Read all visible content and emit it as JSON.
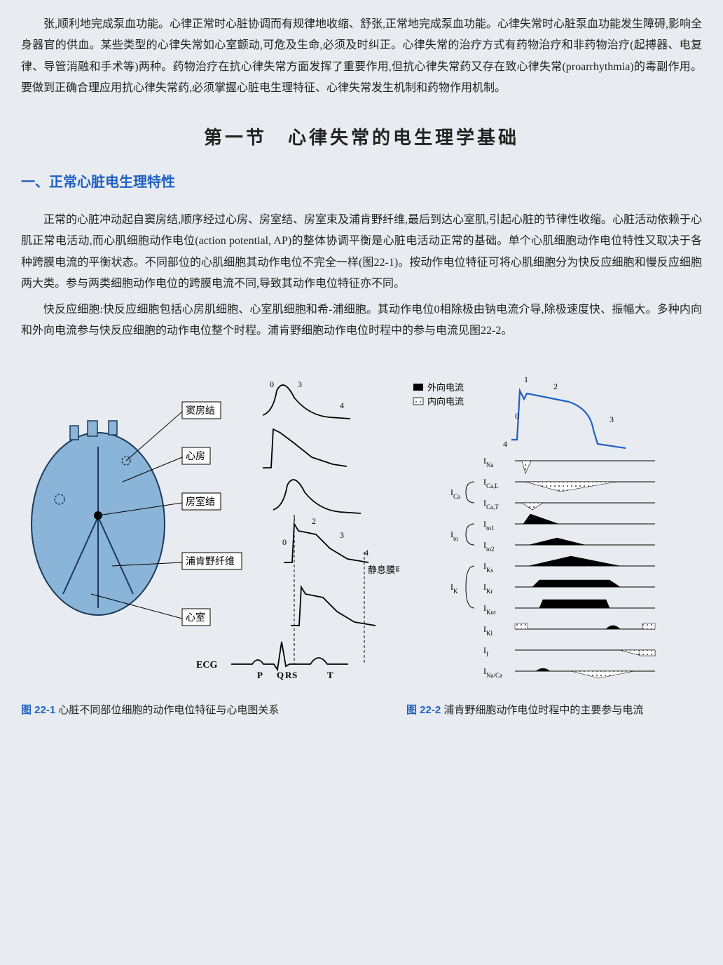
{
  "intro": "张,顺利地完成泵血功能。心律正常时心脏协调而有规律地收缩、舒张,正常地完成泵血功能。心律失常时心脏泵血功能发生障碍,影响全身器官的供血。某些类型的心律失常如心室颤动,可危及生命,必须及时纠正。心律失常的治疗方式有药物治疗和非药物治疗(起搏器、电复律、导管消融和手术等)两种。药物治疗在抗心律失常方面发挥了重要作用,但抗心律失常药又存在致心律失常(proarrhythmia)的毒副作用。要做到正确合理应用抗心律失常药,必须掌握心脏电生理特征、心律失常发生机制和药物作用机制。",
  "sectionTitle": "第一节　心律失常的电生理学基础",
  "subHeading": "一、正常心脏电生理特性",
  "para1": "正常的心脏冲动起自窦房结,顺序经过心房、房室结、房室束及浦肯野纤维,最后到达心室肌,引起心脏的节律性收缩。心脏活动依赖于心肌正常电活动,而心肌细胞动作电位(action potential, AP)的整体协调平衡是心脏电活动正常的基础。单个心肌细胞动作电位特性又取决于各种跨膜电流的平衡状态。不同部位的心肌细胞其动作电位不完全一样(图22-1)。按动作电位特征可将心肌细胞分为快反应细胞和慢反应细胞两大类。参与两类细胞动作电位的跨膜电流不同,导致其动作电位特征亦不同。",
  "para2": "快反应细胞:快反应细胞包括心房肌细胞、心室肌细胞和希-浦细胞。其动作电位0相除极由钠电流介导,除极速度快、振幅大。多种内向和外向电流参与快反应细胞的动作电位整个时程。浦肯野细胞动作电位时程中的参与电流见图22-2。",
  "fig1": {
    "num": "图 22-1",
    "caption": "心脏不同部位细胞的动作电位特征与心电图关系",
    "heartLabels": [
      "窦房结",
      "心房",
      "房室结",
      "浦肯野纤维",
      "心室"
    ],
    "phaseLabels": [
      "0",
      "1",
      "2",
      "3",
      "4"
    ],
    "restingLabel": "静息膜电位",
    "ecgLabel": "ECG",
    "ecgWaves": [
      "P",
      "Q",
      "R",
      "S",
      "T"
    ],
    "heartColor": "#8ab4d8",
    "heartStroke": "#1a3a5a",
    "lineColor": "#000000",
    "labelBoxBg": "#ffffff",
    "labelBoxStroke": "#000000"
  },
  "fig2": {
    "num": "图 22-2",
    "caption": "浦肯野细胞动作电位时程中的主要参与电流",
    "legend": {
      "outward": "外向电流",
      "inward": "内向电流"
    },
    "phaseLabels": [
      "0",
      "1",
      "2",
      "3",
      "4"
    ],
    "currents": [
      {
        "label": "I_Na",
        "group": null
      },
      {
        "label": "I_Ca,L",
        "group": "I_Ca"
      },
      {
        "label": "I_Ca,T",
        "group": "I_Ca"
      },
      {
        "label": "I_to1",
        "group": "I_to"
      },
      {
        "label": "I_to2",
        "group": "I_to"
      },
      {
        "label": "I_Ks",
        "group": "I_K"
      },
      {
        "label": "I_Kr",
        "group": "I_K"
      },
      {
        "label": "I_Kur",
        "group": "I_K"
      },
      {
        "label": "I_Kl",
        "group": null
      },
      {
        "label": "I_f",
        "group": null
      },
      {
        "label": "I_Na/Ca",
        "group": null
      }
    ],
    "apColor": "#2060c0",
    "outwardFill": "#000000",
    "inwardFill": "dots",
    "lineColor": "#000000"
  }
}
